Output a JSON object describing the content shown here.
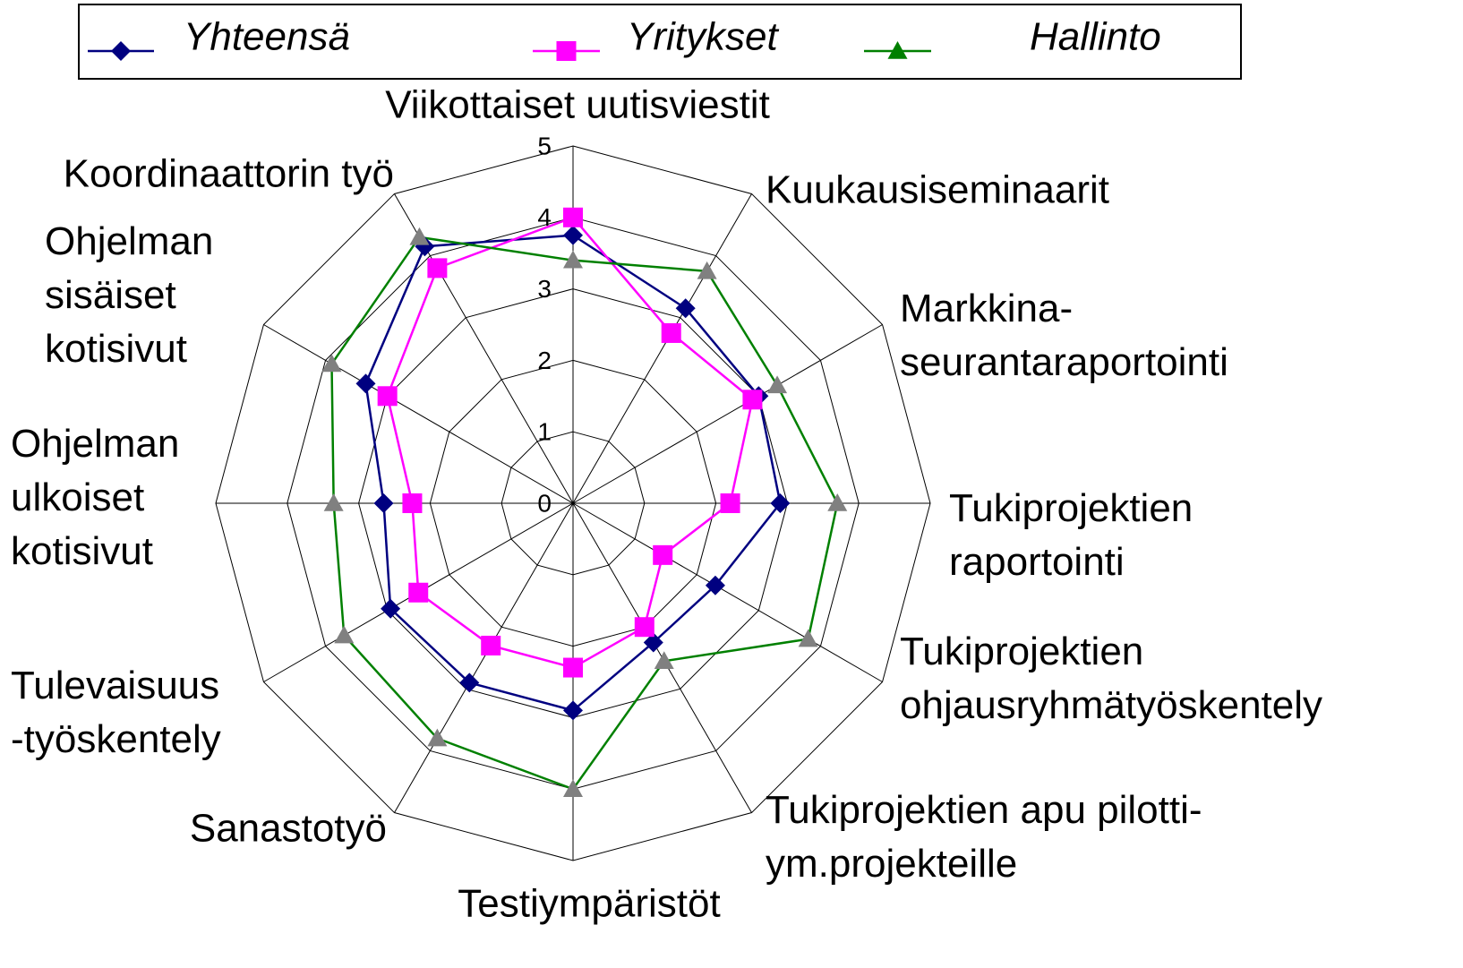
{
  "chart_data": {
    "type": "radar",
    "categories": [
      "Viikottaiset uutisviestit",
      "Kuukausiseminaarit",
      "Markkina-\nseurantaraportointi",
      "Tukiprojektien\nraportointi",
      "Tukiprojektien\nohjausryhmätyöskentely",
      "Tukiprojektien apu pilotti-\nym.projekteille",
      "Testiympäristöt",
      "Sanastotyö",
      "Tulevaisuus\n-työskentely",
      "Ohjelman\nulkoiset\nkotisivut",
      "Ohjelman\nsisäiset\nkotisivut",
      "Koordinaattorin työ"
    ],
    "series": [
      {
        "name": "Yhteensä",
        "color": "#000080",
        "marker": "diamond",
        "marker_color": "#000080",
        "values": [
          3.75,
          3.15,
          3.0,
          2.9,
          2.3,
          2.25,
          2.9,
          2.9,
          2.95,
          2.65,
          3.35,
          4.15
        ]
      },
      {
        "name": "Yritykset",
        "color": "#ff00ff",
        "marker": "square",
        "marker_color": "#ff00ff",
        "values": [
          4.0,
          2.75,
          2.9,
          2.2,
          1.45,
          2.0,
          2.3,
          2.3,
          2.5,
          2.25,
          3.0,
          3.8
        ]
      },
      {
        "name": "Hallinto",
        "color": "#008000",
        "marker": "triangle",
        "marker_color": "#808080",
        "values": [
          3.4,
          3.75,
          3.3,
          3.7,
          3.8,
          2.55,
          4.0,
          3.8,
          3.7,
          3.35,
          3.9,
          4.3
        ]
      }
    ],
    "ylim": [
      0,
      5
    ],
    "yticks": [
      0,
      1,
      2,
      3,
      4,
      5
    ],
    "grid": true
  }
}
